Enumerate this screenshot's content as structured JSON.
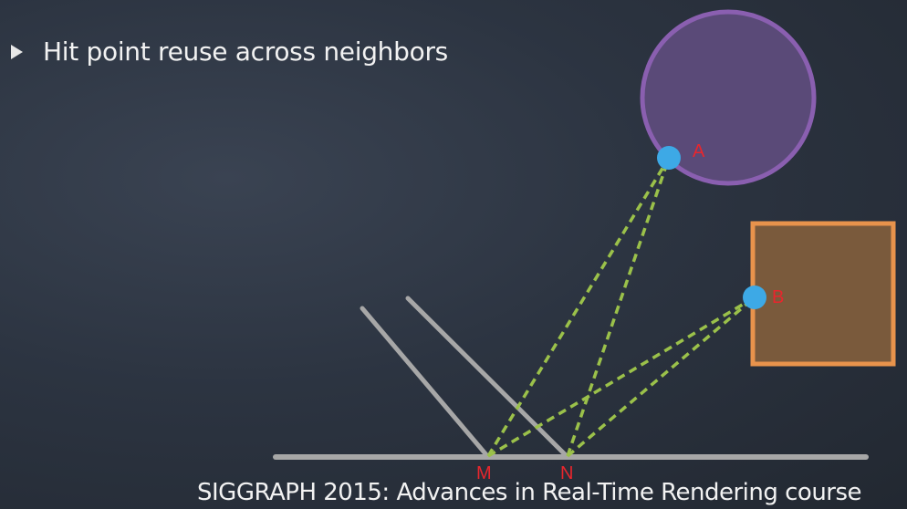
{
  "bullet": {
    "text": "Hit point reuse across neighbors"
  },
  "footer": {
    "text": "SIGGRAPH 2015: Advances in Real-Time Rendering course"
  },
  "labels": {
    "A": "A",
    "B": "B",
    "M": "M",
    "N": "N"
  },
  "colors": {
    "circle_fill": "#5a4a78",
    "circle_stroke": "#8a5fb0",
    "square_fill": "#7a5a3c",
    "square_stroke": "#e8934c",
    "hit_point": "#3da9e6",
    "ray": "#9bc14a",
    "surface": "#a7a7a7",
    "label": "#e8262d"
  },
  "icons": {
    "bullet": "triangle-right-icon"
  }
}
